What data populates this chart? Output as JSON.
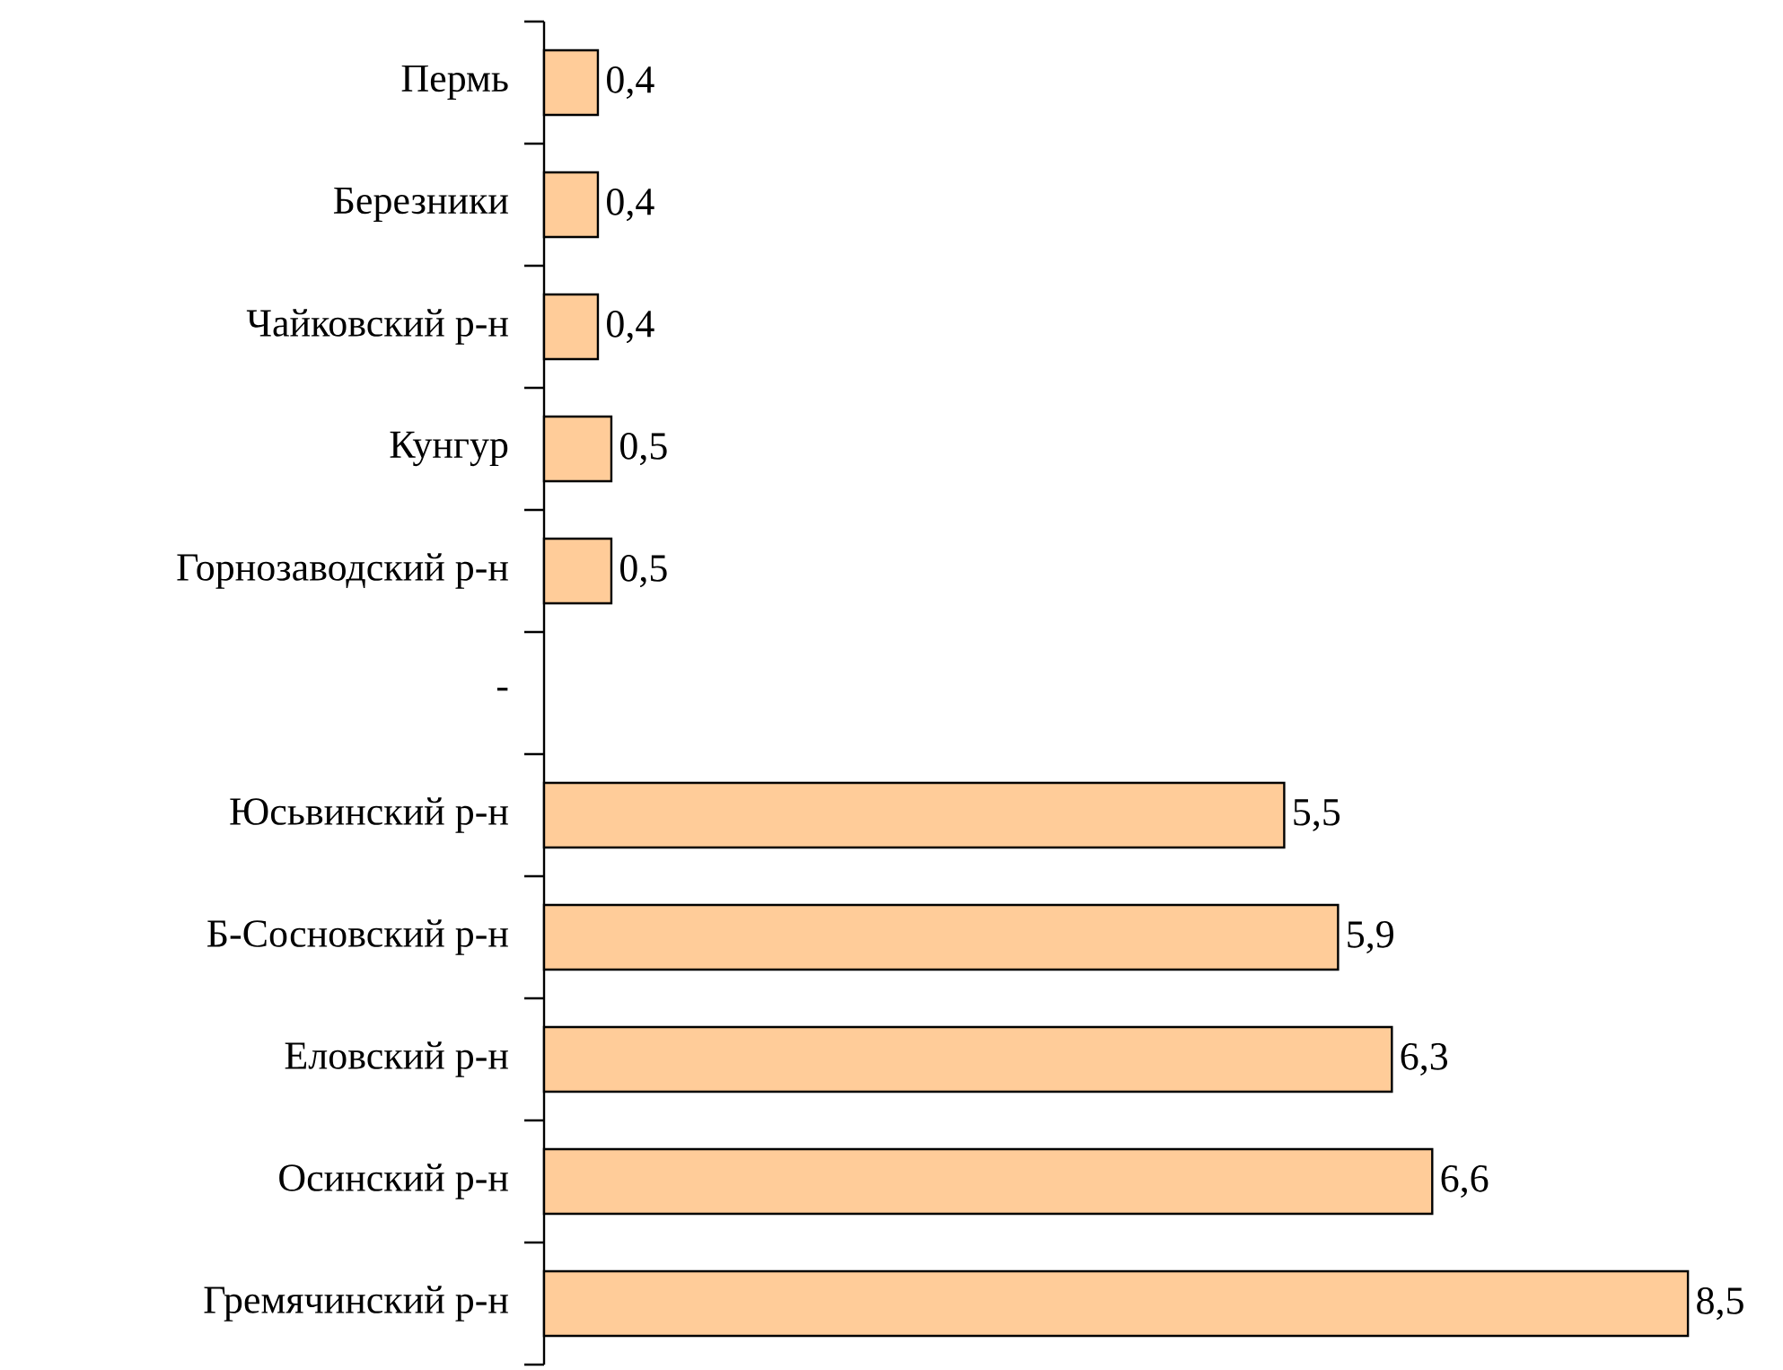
{
  "chart_data": {
    "type": "bar",
    "orientation": "horizontal",
    "categories": [
      "Пермь",
      "Березники",
      "Чайковский р-н",
      "Кунгур",
      "Горнозаводский р-н",
      "-",
      "Юсьвинский р-н",
      "Б-Сосновский р-н",
      "Еловский р-н",
      "Осинский р-н",
      "Гремячинский р-н"
    ],
    "values": [
      0.4,
      0.4,
      0.4,
      0.5,
      0.5,
      null,
      5.5,
      5.9,
      6.3,
      6.6,
      8.5
    ],
    "value_labels": [
      "0,4",
      "0,4",
      "0,4",
      "0,5",
      "0,5",
      null,
      "5,5",
      "5,9",
      "6,3",
      "6,6",
      "8,5"
    ],
    "color": "#ffcc99",
    "tick_labels": "y"
  }
}
